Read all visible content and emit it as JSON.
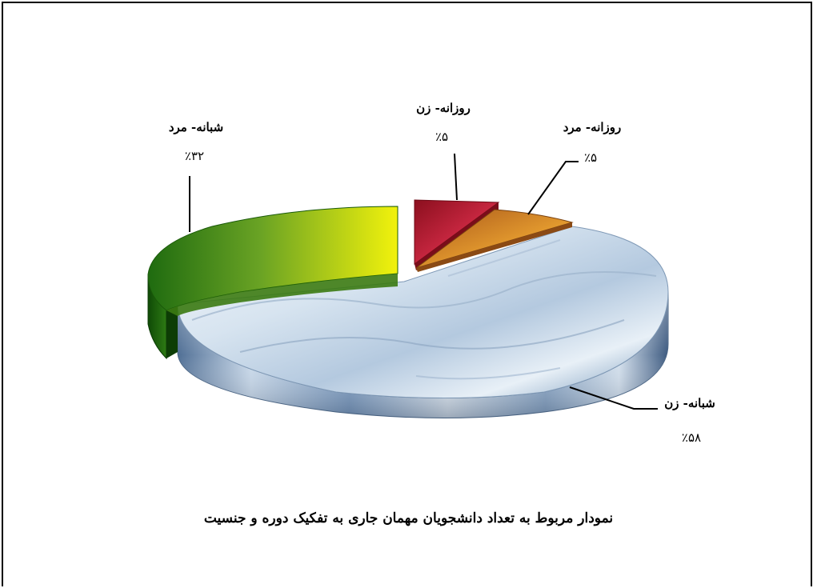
{
  "chart_data": {
    "type": "pie",
    "title": "نمودار مربوط به تعداد دانشجویان مهمان جاری به تفکیک دوره و جنسیت",
    "slices": [
      {
        "name": "شبانه- زن",
        "value": 58,
        "label": "٪۵۸",
        "fill": "snow-photo",
        "exploded": false
      },
      {
        "name": "شبانه- مرد",
        "value": 32,
        "label": "٪۳۲",
        "fill": "green-yellow-gradient",
        "exploded": true
      },
      {
        "name": "روزانه- زن",
        "value": 5,
        "label": "٪۵",
        "fill": "#c8233a",
        "exploded": true
      },
      {
        "name": "روزانه- مرد",
        "value": 5,
        "label": "٪۵",
        "fill": "#e08a1e",
        "exploded": false
      }
    ],
    "style": "3d-exploded-pie"
  }
}
